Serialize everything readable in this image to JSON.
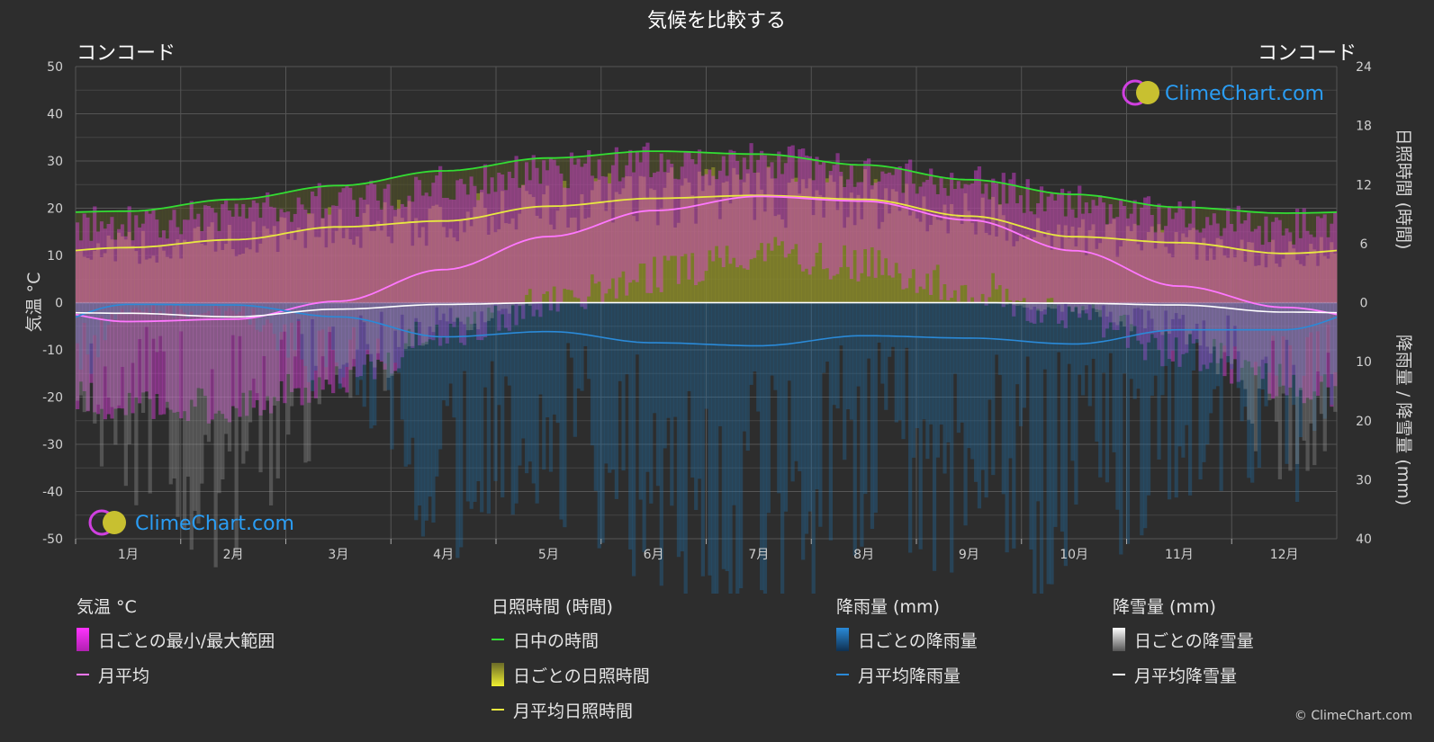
{
  "colors": {
    "background": "#2d2d2d",
    "grid": "#555555",
    "temp_range": "#e040e0",
    "temp_avg": "#ff77ff",
    "daylight": "#33dd33",
    "sunshine_fill": "#a8a82a",
    "sunshine_avg": "#e8e840",
    "rain": "#1f6fa8",
    "rain_avg": "#2a8ad8",
    "snow": "#9a9a9a",
    "snow_avg": "#ffffff",
    "brand": "#2a9df4"
  },
  "brand": {
    "name": "ClimeChart.com",
    "copyright": "© ClimeChart.com"
  },
  "chart_data": {
    "type": "line",
    "title": "気候を比較する",
    "location_left": "コンコード",
    "location_right": "コンコード",
    "months": [
      "1月",
      "2月",
      "3月",
      "4月",
      "5月",
      "6月",
      "7月",
      "8月",
      "9月",
      "10月",
      "11月",
      "12月"
    ],
    "y_left": {
      "label": "気温 °C",
      "range": [
        -50,
        50
      ],
      "ticks": [
        50,
        40,
        30,
        20,
        10,
        0,
        -10,
        -20,
        -30,
        -40,
        -50
      ]
    },
    "y_right_top": {
      "label": "日照時間 (時間)",
      "range": [
        0,
        24
      ],
      "ticks": [
        24,
        18,
        12,
        6,
        0
      ]
    },
    "y_right_bottom": {
      "label": "降雨量 / 降雪量 (mm)",
      "range": [
        0,
        40
      ],
      "ticks": [
        0,
        10,
        20,
        30,
        40
      ]
    },
    "series": {
      "temp_avg": [
        -4,
        -3.5,
        0.3,
        7,
        14,
        19.5,
        22.5,
        21.5,
        17.5,
        11,
        3.5,
        -1
      ],
      "temp_max": [
        17,
        19,
        22,
        25,
        28,
        30,
        30,
        28,
        25,
        21,
        18,
        16
      ],
      "temp_min": [
        -22,
        -22,
        -16,
        -6,
        0,
        6,
        11,
        8,
        3,
        -3,
        -10,
        -17
      ],
      "daylight": [
        9.3,
        10.5,
        11.9,
        13.4,
        14.7,
        15.4,
        15.1,
        14,
        12.5,
        11,
        9.7,
        9.1
      ],
      "sunshine_avg": [
        5.6,
        6.4,
        7.7,
        8.3,
        9.8,
        10.6,
        10.9,
        10.5,
        8.8,
        6.7,
        6.1,
        5
      ],
      "rain_avg": [
        0.3,
        0.4,
        2.4,
        5.8,
        4.9,
        6.8,
        7.3,
        5.6,
        6,
        7,
        4.6,
        4.6
      ],
      "snow_avg": [
        1.8,
        2.4,
        1.1,
        0.3,
        0,
        0,
        0,
        0,
        0,
        0.1,
        0.4,
        1.6
      ]
    }
  },
  "legend": {
    "temp": {
      "title": "気温 °C",
      "range_label": "日ごとの最小/最大範囲",
      "avg_label": "月平均"
    },
    "sun": {
      "title": "日照時間 (時間)",
      "daylight_label": "日中の時間",
      "daily_label": "日ごとの日照時間",
      "avg_label": "月平均日照時間"
    },
    "rain": {
      "title": "降雨量 (mm)",
      "daily_label": "日ごとの降雨量",
      "avg_label": "月平均降雨量"
    },
    "snow": {
      "title": "降雪量 (mm)",
      "daily_label": "日ごとの降雪量",
      "avg_label": "月平均降雪量"
    }
  }
}
